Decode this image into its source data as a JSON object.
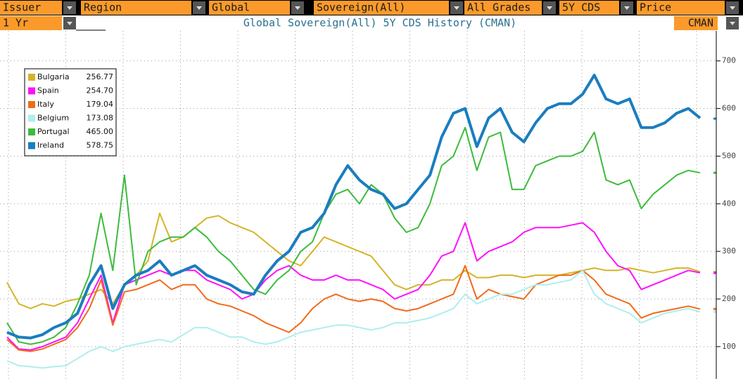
{
  "toolbar": {
    "fields": [
      "Issuer",
      "Region",
      "Global",
      "Sovereign(All)",
      "All Grades",
      "5Y CDS",
      "Price"
    ],
    "period": "1 Yr",
    "source": "CMAN"
  },
  "chart_data": {
    "type": "line",
    "title": "Global Sovereign(All) 5Y CDS History (CMAN)",
    "ylim": [
      32,
      763
    ],
    "yticks": [
      100,
      200,
      300,
      400,
      500,
      600,
      700
    ],
    "grid": true,
    "series": [
      {
        "name": "Bulgaria",
        "color": "#d4b42a",
        "last": {
          "value": 256.77,
          "label": "256.77"
        },
        "values": [
          235,
          190,
          180,
          190,
          185,
          195,
          200,
          210,
          220,
          190,
          230,
          250,
          280,
          380,
          320,
          330,
          350,
          370,
          375,
          360,
          350,
          340,
          320,
          300,
          280,
          270,
          300,
          330,
          320,
          310,
          300,
          290,
          260,
          230,
          220,
          230,
          230,
          240,
          240,
          260,
          245,
          245,
          250,
          250,
          245,
          250,
          250,
          250,
          255,
          260,
          265,
          260,
          260,
          265,
          260,
          255,
          260,
          265,
          265,
          257
        ]
      },
      {
        "name": "Spain",
        "color": "#ff10ff",
        "last": {
          "value": 254.7,
          "label": "254.70"
        },
        "values": [
          120,
          95,
          93,
          100,
          110,
          120,
          150,
          200,
          250,
          150,
          230,
          240,
          250,
          260,
          250,
          260,
          260,
          240,
          230,
          220,
          200,
          210,
          240,
          260,
          270,
          250,
          240,
          240,
          250,
          240,
          240,
          230,
          220,
          200,
          210,
          220,
          250,
          290,
          300,
          360,
          280,
          300,
          310,
          320,
          340,
          350,
          350,
          350,
          355,
          360,
          340,
          300,
          270,
          260,
          220,
          230,
          240,
          250,
          260,
          255
        ]
      },
      {
        "name": "Italy",
        "color": "#f06a1a",
        "last": {
          "value": 179.04,
          "label": "179.04"
        },
        "values": [
          115,
          93,
          90,
          95,
          105,
          115,
          140,
          180,
          240,
          145,
          215,
          220,
          230,
          240,
          220,
          230,
          230,
          200,
          190,
          185,
          175,
          165,
          150,
          140,
          130,
          150,
          180,
          200,
          210,
          200,
          195,
          200,
          195,
          180,
          175,
          180,
          190,
          200,
          210,
          270,
          200,
          220,
          210,
          205,
          200,
          230,
          240,
          250,
          250,
          260,
          240,
          210,
          200,
          190,
          160,
          170,
          175,
          180,
          185,
          179
        ]
      },
      {
        "name": "Belgium",
        "color": "#aeeeee",
        "last": {
          "value": 173.08,
          "label": "173.08"
        },
        "values": [
          70,
          60,
          58,
          55,
          58,
          60,
          75,
          90,
          100,
          90,
          100,
          105,
          110,
          115,
          110,
          125,
          140,
          140,
          130,
          120,
          120,
          110,
          105,
          110,
          120,
          130,
          135,
          140,
          145,
          145,
          140,
          135,
          140,
          150,
          150,
          155,
          160,
          170,
          180,
          210,
          190,
          200,
          210,
          210,
          220,
          230,
          230,
          235,
          240,
          260,
          210,
          190,
          180,
          170,
          150,
          160,
          170,
          175,
          180,
          173
        ]
      },
      {
        "name": "Portugal",
        "color": "#3cbc3c",
        "last": {
          "value": 465,
          "label": "465.00"
        },
        "values": [
          150,
          110,
          105,
          110,
          120,
          140,
          190,
          250,
          380,
          260,
          460,
          230,
          300,
          320,
          330,
          330,
          350,
          330,
          300,
          280,
          250,
          220,
          210,
          240,
          260,
          300,
          320,
          380,
          420,
          430,
          400,
          440,
          420,
          370,
          340,
          350,
          400,
          480,
          500,
          560,
          470,
          540,
          550,
          430,
          430,
          480,
          490,
          500,
          500,
          510,
          550,
          450,
          440,
          450,
          390,
          420,
          440,
          460,
          470,
          465
        ]
      },
      {
        "name": "Ireland",
        "color": "#1a7dbf",
        "last": {
          "value": 578.75,
          "label": "578.75"
        },
        "values": [
          130,
          120,
          118,
          125,
          140,
          150,
          170,
          230,
          270,
          180,
          230,
          250,
          260,
          280,
          250,
          260,
          270,
          250,
          240,
          230,
          215,
          210,
          250,
          280,
          300,
          340,
          350,
          380,
          440,
          480,
          450,
          430,
          420,
          390,
          400,
          430,
          460,
          540,
          590,
          600,
          520,
          580,
          600,
          550,
          530,
          570,
          600,
          610,
          610,
          630,
          670,
          620,
          610,
          620,
          560,
          560,
          570,
          590,
          600,
          580
        ]
      }
    ]
  }
}
